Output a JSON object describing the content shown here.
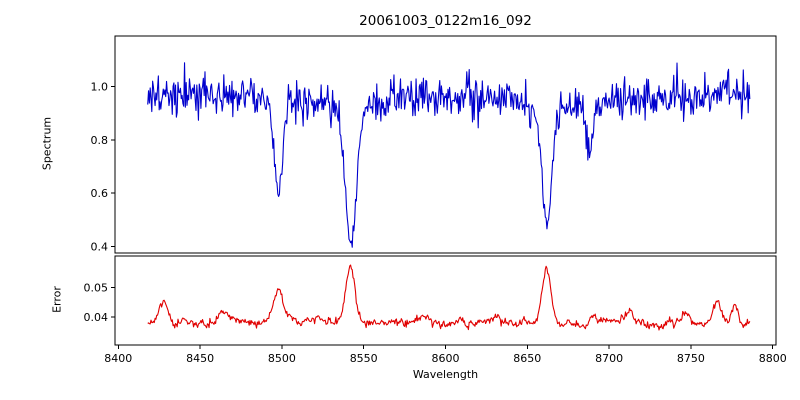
{
  "figure": {
    "title": "20061003_0122m16_092",
    "xlabel": "Wavelength",
    "background": "#ffffff"
  },
  "chart_data": [
    {
      "type": "line",
      "panel": "spectrum",
      "title": "20061003_0122m16_092",
      "ylabel": "Spectrum",
      "legend": "none",
      "grid": false,
      "color": "#0000cd",
      "xlim": [
        8398,
        8802
      ],
      "ylim": [
        0.375,
        1.19
      ],
      "yticks": [
        0.4,
        0.6,
        0.8,
        1.0
      ],
      "ytick_labels": [
        "0.4",
        "0.6",
        "0.8",
        "1.0"
      ],
      "x_start": 8418,
      "x_end": 8786,
      "x_step": 0.5,
      "level": 0.963,
      "slow_wave_amp": 0.008,
      "slow_wave_period": 55,
      "noise_sigma": 0.037,
      "noise_seed": 20061003,
      "features": [
        {
          "center": 8498.0,
          "depth": 0.34,
          "width": 2.4
        },
        {
          "center": 8542.1,
          "depth": 0.505,
          "width": 3.3
        },
        {
          "center": 8662.1,
          "depth": 0.43,
          "width": 2.9
        },
        {
          "center": 8688.0,
          "depth": 0.17,
          "width": 2.0
        }
      ]
    },
    {
      "type": "line",
      "panel": "error",
      "ylabel": "Error",
      "xlabel": "Wavelength",
      "legend": "none",
      "grid": false,
      "color": "#e00000",
      "xlim": [
        8398,
        8802
      ],
      "ylim": [
        0.0307,
        0.0605
      ],
      "yticks": [
        0.04,
        0.05
      ],
      "ytick_labels": [
        "0.04",
        "0.05"
      ],
      "xticks": [
        8400,
        8450,
        8500,
        8550,
        8600,
        8650,
        8700,
        8750,
        8800
      ],
      "xtick_labels": [
        "8400",
        "8450",
        "8500",
        "8550",
        "8600",
        "8650",
        "8700",
        "8750",
        "8800"
      ],
      "x_start": 8418,
      "x_end": 8786,
      "x_step": 0.5,
      "level": 0.0383,
      "slow_wave_amp": 0.0005,
      "slow_wave_period": 70,
      "noise_sigma": 0.00055,
      "noise_seed": 92,
      "features": [
        {
          "center": 8428,
          "height": 0.007,
          "width": 2.5
        },
        {
          "center": 8465,
          "height": 0.0035,
          "width": 2.5
        },
        {
          "center": 8498,
          "height": 0.0105,
          "width": 2.5
        },
        {
          "center": 8542,
          "height": 0.0185,
          "width": 2.6
        },
        {
          "center": 8585,
          "height": 0.002,
          "width": 3.0
        },
        {
          "center": 8662,
          "height": 0.019,
          "width": 2.6
        },
        {
          "center": 8690,
          "height": 0.003,
          "width": 2.0
        },
        {
          "center": 8713,
          "height": 0.0035,
          "width": 2.0
        },
        {
          "center": 8746,
          "height": 0.003,
          "width": 2.0
        },
        {
          "center": 8766,
          "height": 0.0085,
          "width": 2.5
        },
        {
          "center": 8777,
          "height": 0.006,
          "width": 2.0
        }
      ]
    }
  ]
}
